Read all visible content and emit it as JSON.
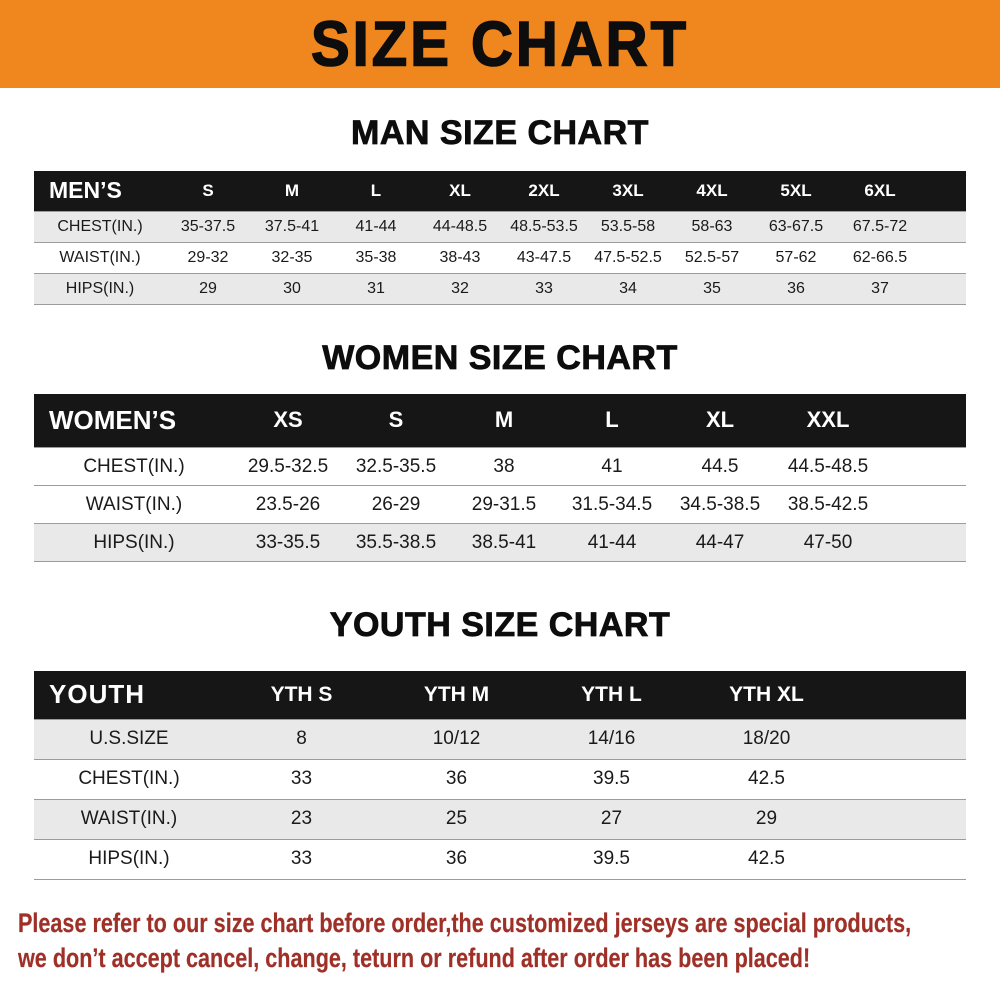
{
  "colors": {
    "banner_orange": "#f0871e",
    "table_header_black": "#161616",
    "row_shade_gray": "#e9e9e9",
    "footer_red": "#9e3028"
  },
  "banner": {
    "title": "SIZE CHART"
  },
  "men": {
    "heading": "MAN SIZE CHART",
    "label": "MEN’S",
    "columns": [
      "S",
      "M",
      "L",
      "XL",
      "2XL",
      "3XL",
      "4XL",
      "5XL",
      "6XL"
    ],
    "rows": [
      {
        "label": "CHEST(IN.)",
        "values": [
          "35-37.5",
          "37.5-41",
          "41-44",
          "44-48.5",
          "48.5-53.5",
          "53.5-58",
          "58-63",
          "63-67.5",
          "67.5-72"
        ]
      },
      {
        "label": "WAIST(IN.)",
        "values": [
          "29-32",
          "32-35",
          "35-38",
          "38-43",
          "43-47.5",
          "47.5-52.5",
          "52.5-57",
          "57-62",
          "62-66.5"
        ]
      },
      {
        "label": "HIPS(IN.)",
        "values": [
          "29",
          "30",
          "31",
          "32",
          "33",
          "34",
          "35",
          "36",
          "37"
        ]
      }
    ]
  },
  "women": {
    "heading": "WOMEN SIZE CHART",
    "label": "WOMEN’S",
    "columns": [
      "XS",
      "S",
      "M",
      "L",
      "XL",
      "XXL"
    ],
    "rows": [
      {
        "label": "CHEST(IN.)",
        "values": [
          "29.5-32.5",
          "32.5-35.5",
          "38",
          "41",
          "44.5",
          "44.5-48.5"
        ]
      },
      {
        "label": "WAIST(IN.)",
        "values": [
          "23.5-26",
          "26-29",
          "29-31.5",
          "31.5-34.5",
          "34.5-38.5",
          "38.5-42.5"
        ]
      },
      {
        "label": "HIPS(IN.)",
        "values": [
          "33-35.5",
          "35.5-38.5",
          "38.5-41",
          "41-44",
          "44-47",
          "47-50"
        ]
      }
    ]
  },
  "youth": {
    "heading": "YOUTH SIZE CHART",
    "label": "YOUTH",
    "columns": [
      "YTH S",
      "YTH M",
      "YTH L",
      "YTH XL"
    ],
    "rows": [
      {
        "label": "U.S.SIZE",
        "values": [
          "8",
          "10/12",
          "14/16",
          "18/20"
        ]
      },
      {
        "label": "CHEST(IN.)",
        "values": [
          "33",
          "36",
          "39.5",
          "42.5"
        ]
      },
      {
        "label": "WAIST(IN.)",
        "values": [
          "23",
          "25",
          "27",
          "29"
        ]
      },
      {
        "label": "HIPS(IN.)",
        "values": [
          "33",
          "36",
          "39.5",
          "42.5"
        ]
      }
    ]
  },
  "footer": {
    "line1": "Please refer to our size chart before order,the customized jerseys are special products,",
    "line2": "we don’t accept cancel, change, teturn or refund after order has been placed!"
  }
}
